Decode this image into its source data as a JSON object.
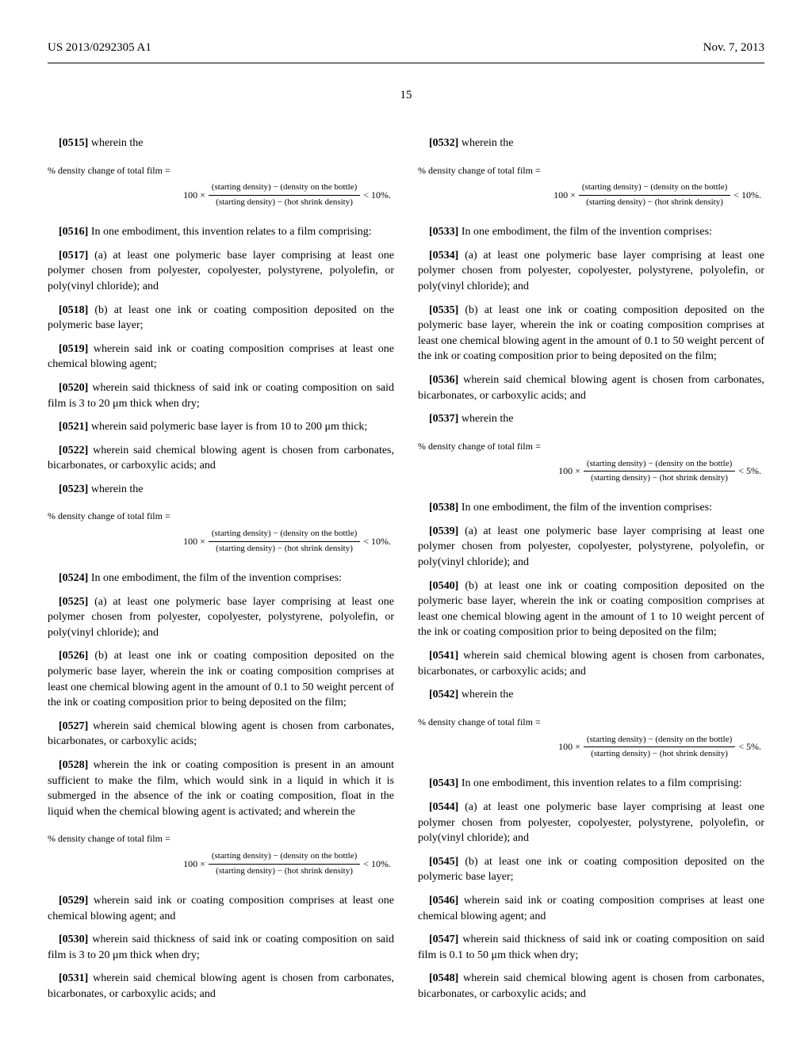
{
  "header": {
    "patent_id": "US 2013/0292305 A1",
    "date": "Nov. 7, 2013"
  },
  "page_number": "15",
  "formula": {
    "label": "% density change of total film =",
    "prefix": "100 ×",
    "numerator": "(starting density) − (density on the bottle)",
    "denominator": "(starting density) − (hot shrink density)",
    "lt_10": "< 10%.",
    "lt_5": "< 5%."
  },
  "paragraphs": {
    "p0515": {
      "num": "[0515]",
      "text": "wherein the"
    },
    "p0516": {
      "num": "[0516]",
      "text": "In one embodiment, this invention relates to a film comprising:"
    },
    "p0517": {
      "num": "[0517]",
      "text": "(a) at least one polymeric base layer comprising at least one polymer chosen from polyester, copolyester, polystyrene, polyolefin, or poly(vinyl chloride); and"
    },
    "p0518": {
      "num": "[0518]",
      "text": "(b) at least one ink or coating composition deposited on the polymeric base layer;"
    },
    "p0519": {
      "num": "[0519]",
      "text": "wherein said ink or coating composition comprises at least one chemical blowing agent;"
    },
    "p0520": {
      "num": "[0520]",
      "text": "wherein said thickness of said ink or coating composition on said film is 3 to 20 μm thick when dry;"
    },
    "p0521": {
      "num": "[0521]",
      "text": "wherein said polymeric base layer is from 10 to 200 μm thick;"
    },
    "p0522": {
      "num": "[0522]",
      "text": "wherein said chemical blowing agent is chosen from carbonates, bicarbonates, or carboxylic acids; and"
    },
    "p0523": {
      "num": "[0523]",
      "text": "wherein the"
    },
    "p0524": {
      "num": "[0524]",
      "text": "In one embodiment, the film of the invention comprises:"
    },
    "p0525": {
      "num": "[0525]",
      "text": "(a) at least one polymeric base layer comprising at least one polymer chosen from polyester, copolyester, polystyrene, polyolefin, or poly(vinyl chloride); and"
    },
    "p0526": {
      "num": "[0526]",
      "text": "(b) at least one ink or coating composition deposited on the polymeric base layer, wherein the ink or coating composition comprises at least one chemical blowing agent in the amount of 0.1 to 50 weight percent of the ink or coating composition prior to being deposited on the film;"
    },
    "p0527": {
      "num": "[0527]",
      "text": "wherein said chemical blowing agent is chosen from carbonates, bicarbonates, or carboxylic acids;"
    },
    "p0528": {
      "num": "[0528]",
      "text": "wherein the ink or coating composition is present in an amount sufficient to make the film, which would sink in a liquid in which it is submerged in the absence of the ink or coating composition, float in the liquid when the chemical blowing agent is activated; and wherein the"
    },
    "p0529": {
      "num": "[0529]",
      "text": "wherein said ink or coating composition comprises at least one chemical blowing agent; and"
    },
    "p0530": {
      "num": "[0530]",
      "text": "wherein said thickness of said ink or coating composition on said film is 3 to 20 μm thick when dry;"
    },
    "p0531": {
      "num": "[0531]",
      "text": "wherein said chemical blowing agent is chosen from carbonates, bicarbonates, or carboxylic acids; and"
    },
    "p0532": {
      "num": "[0532]",
      "text": "wherein the"
    },
    "p0533": {
      "num": "[0533]",
      "text": "In one embodiment, the film of the invention comprises:"
    },
    "p0534": {
      "num": "[0534]",
      "text": "(a) at least one polymeric base layer comprising at least one polymer chosen from polyester, copolyester, polystyrene, polyolefin, or poly(vinyl chloride); and"
    },
    "p0535": {
      "num": "[0535]",
      "text": "(b) at least one ink or coating composition deposited on the polymeric base layer, wherein the ink or coating composition comprises at least one chemical blowing agent in the amount of 0.1 to 50 weight percent of the ink or coating composition prior to being deposited on the film;"
    },
    "p0536": {
      "num": "[0536]",
      "text": "wherein said chemical blowing agent is chosen from carbonates, bicarbonates, or carboxylic acids; and"
    },
    "p0537": {
      "num": "[0537]",
      "text": "wherein the"
    },
    "p0538": {
      "num": "[0538]",
      "text": "In one embodiment, the film of the invention comprises:"
    },
    "p0539": {
      "num": "[0539]",
      "text": "(a) at least one polymeric base layer comprising at least one polymer chosen from polyester, copolyester, polystyrene, polyolefin, or poly(vinyl chloride); and"
    },
    "p0540": {
      "num": "[0540]",
      "text": "(b) at least one ink or coating composition deposited on the polymeric base layer, wherein the ink or coating composition comprises at least one chemical blowing agent in the amount of 1 to 10 weight percent of the ink or coating composition prior to being deposited on the film;"
    },
    "p0541": {
      "num": "[0541]",
      "text": "wherein said chemical blowing agent is chosen from carbonates, bicarbonates, or carboxylic acids; and"
    },
    "p0542": {
      "num": "[0542]",
      "text": "wherein the"
    },
    "p0543": {
      "num": "[0543]",
      "text": "In one embodiment, this invention relates to a film comprising:"
    },
    "p0544": {
      "num": "[0544]",
      "text": "(a) at least one polymeric base layer comprising at least one polymer chosen from polyester, copolyester, polystyrene, polyolefin, or poly(vinyl chloride); and"
    },
    "p0545": {
      "num": "[0545]",
      "text": "(b) at least one ink or coating composition deposited on the polymeric base layer;"
    },
    "p0546": {
      "num": "[0546]",
      "text": "wherein said ink or coating composition comprises at least one chemical blowing agent; and"
    },
    "p0547": {
      "num": "[0547]",
      "text": "wherein said thickness of said ink or coating composition on said film is 0.1 to 50 μm thick when dry;"
    },
    "p0548": {
      "num": "[0548]",
      "text": "wherein said chemical blowing agent is chosen from carbonates, bicarbonates, or carboxylic acids; and"
    }
  }
}
